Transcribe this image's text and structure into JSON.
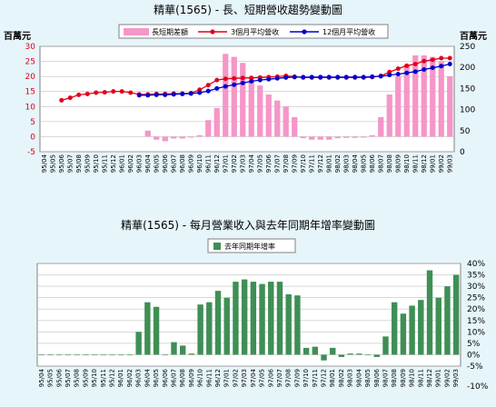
{
  "chart_data": [
    {
      "type": "bar+line",
      "title": "精華(1565) -  長、短期營收趨勢變動圖",
      "y_left_unit": "百萬元",
      "y_right_unit": "百萬元",
      "ylim_left": [
        -5,
        30
      ],
      "ylim_right": [
        0,
        250
      ],
      "yticks_left": [
        "30",
        "25",
        "20",
        "15",
        "10",
        "5",
        "0",
        "-5"
      ],
      "yticks_right": [
        "250",
        "200",
        "150",
        "100",
        "50",
        "0"
      ],
      "grid": true,
      "legend_position": "top",
      "categories": [
        "95/04",
        "95/05",
        "95/06",
        "95/07",
        "95/08",
        "95/09",
        "95/10",
        "95/11",
        "95/12",
        "96/01",
        "96/02",
        "96/03",
        "96/04",
        "96/05",
        "96/06",
        "96/07",
        "96/08",
        "96/09",
        "96/10",
        "96/11",
        "96/12",
        "97/01",
        "97/02",
        "97/03",
        "97/04",
        "97/05",
        "97/06",
        "97/07",
        "97/08",
        "97/09",
        "97/10",
        "97/11",
        "97/12",
        "98/01",
        "98/02",
        "98/03",
        "98/04",
        "98/05",
        "98/06",
        "98/07",
        "98/08",
        "98/09",
        "98/10",
        "98/11",
        "98/12",
        "99/01",
        "99/02",
        "99/03"
      ],
      "series": [
        {
          "name": "長短期差額",
          "kind": "bar",
          "axis": "left",
          "color": "#f596c8",
          "values": [
            null,
            null,
            null,
            null,
            null,
            null,
            null,
            null,
            null,
            null,
            null,
            null,
            2,
            -1,
            -1.5,
            -0.6,
            -0.6,
            -0.3,
            0.5,
            5.5,
            9.5,
            27.5,
            26.5,
            24.5,
            19,
            17,
            14,
            12,
            10,
            6.5,
            -0.5,
            -1,
            -1,
            -1,
            -0.5,
            -0.4,
            -0.4,
            -0.3,
            0.5,
            6.5,
            14,
            20,
            24,
            27,
            27,
            26.5,
            25,
            20
          ]
        },
        {
          "name": "3個月平均營收",
          "kind": "line",
          "axis": "right",
          "color": "#e0001b",
          "values": [
            null,
            null,
            122,
            128,
            135,
            137,
            140,
            141,
            143,
            143,
            140,
            136,
            136,
            137,
            137,
            138,
            138,
            139,
            147,
            158,
            170,
            173,
            174,
            175,
            175,
            176,
            177,
            178,
            180,
            178,
            176,
            176,
            176,
            176,
            176,
            176,
            176,
            176,
            177,
            180,
            189,
            197,
            204,
            208,
            215,
            218,
            222,
            222
          ]
        },
        {
          "name": "12個月平均營收",
          "kind": "line",
          "axis": "right",
          "color": "#0000cc",
          "values": [
            null,
            null,
            null,
            null,
            null,
            null,
            null,
            null,
            null,
            null,
            null,
            134,
            134,
            135,
            135,
            136,
            137,
            138,
            140,
            144,
            150,
            155,
            159,
            163,
            167,
            170,
            172,
            174,
            176,
            177,
            177,
            177,
            177,
            177,
            177,
            177,
            177,
            177,
            178,
            179,
            182,
            184,
            187,
            190,
            195,
            199,
            203,
            208
          ]
        }
      ]
    },
    {
      "type": "bar",
      "title": "精華(1565) -  每月營業收入與去年同期年增率變動圖",
      "ylim": [
        -5,
        40
      ],
      "yticks": [
        "40%",
        "35%",
        "30%",
        "25%",
        "20%",
        "15%",
        "10%",
        "5%",
        "0%",
        "-5%",
        "-10%"
      ],
      "grid": true,
      "legend_position": "top",
      "categories": [
        "95/04",
        "95/05",
        "95/06",
        "95/07",
        "95/08",
        "95/09",
        "95/10",
        "95/11",
        "95/12",
        "96/01",
        "96/02",
        "96/03",
        "96/04",
        "96/05",
        "96/06",
        "96/07",
        "96/08",
        "96/09",
        "96/10",
        "96/11",
        "96/12",
        "97/01",
        "97/02",
        "97/03",
        "97/04",
        "97/05",
        "97/06",
        "97/07",
        "97/08",
        "97/09",
        "97/10",
        "97/11",
        "97/12",
        "98/01",
        "98/02",
        "98/03",
        "98/04",
        "98/05",
        "98/06",
        "98/07",
        "98/08",
        "98/09",
        "98/10",
        "98/11",
        "98/12",
        "99/01",
        "99/02",
        "99/03"
      ],
      "series": [
        {
          "name": "去年同期年增率",
          "color": "#3f8f55",
          "values": [
            0,
            0,
            0,
            0,
            0,
            0,
            0,
            0,
            0,
            0,
            0,
            10,
            23,
            21,
            0,
            5.5,
            4,
            0.5,
            22,
            23,
            28,
            25,
            32,
            33,
            32,
            31,
            32,
            32,
            26.5,
            26,
            3,
            3.5,
            -2.5,
            3,
            -1,
            0.5,
            0.5,
            0,
            -1,
            8,
            23,
            18,
            21.5,
            24,
            37,
            25,
            30,
            35
          ]
        }
      ]
    }
  ]
}
